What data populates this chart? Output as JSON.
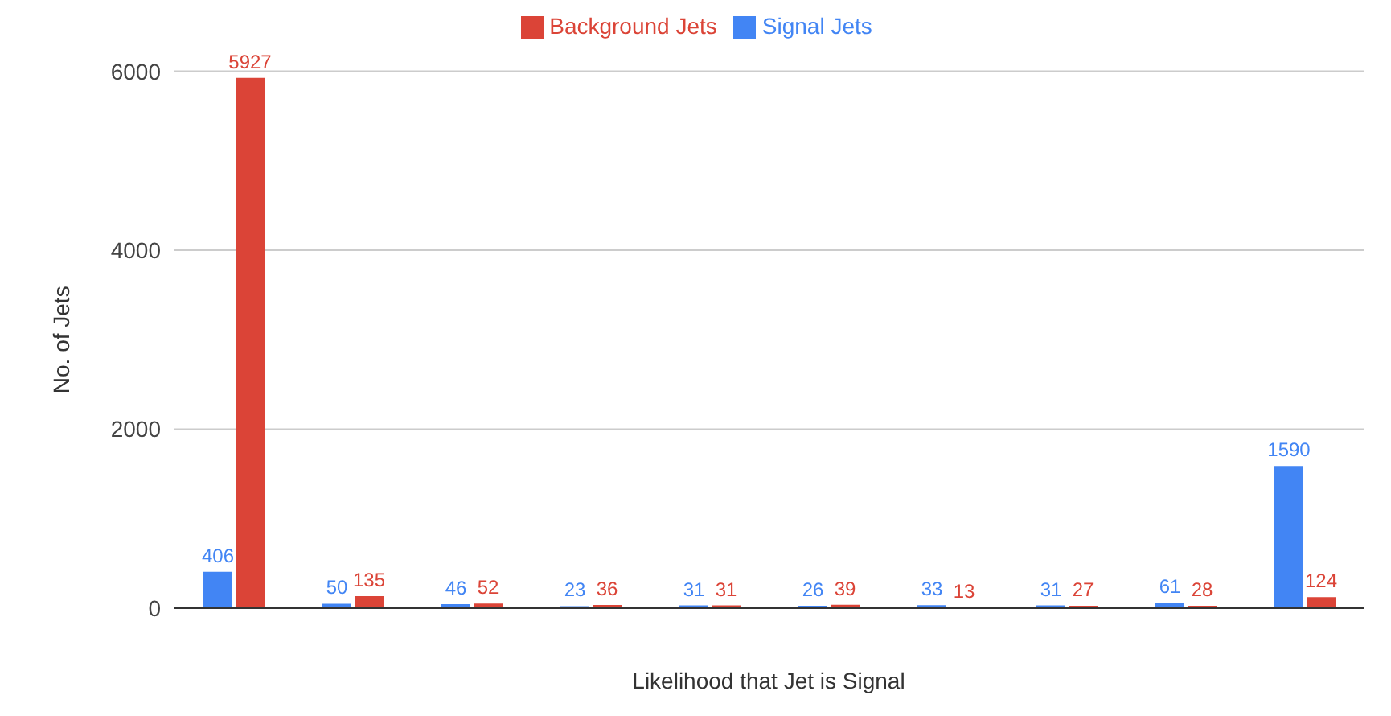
{
  "chart_data": {
    "type": "bar",
    "xlabel": "Likelihood that Jet is Signal",
    "ylabel": "No. of Jets",
    "categories": [
      null,
      null,
      null,
      null,
      null,
      null,
      null,
      null,
      null,
      null
    ],
    "series": [
      {
        "name": "Signal Jets",
        "color": "#4285f4",
        "values": [
          406,
          50,
          46,
          23,
          31,
          26,
          33,
          31,
          61,
          1590
        ]
      },
      {
        "name": "Background Jets",
        "color": "#db4437",
        "values": [
          5927,
          135,
          52,
          36,
          31,
          39,
          13,
          27,
          28,
          124
        ]
      }
    ],
    "ylim": [
      0,
      6000
    ],
    "yticks": [
      0,
      2000,
      4000,
      6000
    ],
    "grid": "y",
    "legend": "top",
    "data_labels": true
  }
}
